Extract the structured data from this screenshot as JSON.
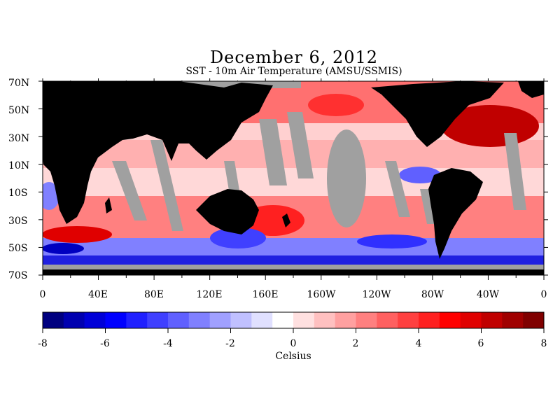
{
  "title": "December 6, 2012",
  "subtitle": "SST - 10m Air Temperature (AMSU/SSMIS)",
  "map": {
    "lat_labels": [
      "70N",
      "50N",
      "30N",
      "10N",
      "10S",
      "30S",
      "50S",
      "70S"
    ],
    "lon_labels": [
      "0",
      "40E",
      "80E",
      "120E",
      "160E",
      "160W",
      "120W",
      "80W",
      "40W",
      "0"
    ],
    "colors": {
      "land": "#000000",
      "no_data": "#a0a0a0"
    }
  },
  "colorbar": {
    "ticks": [
      "-8",
      "-6",
      "-4",
      "-2",
      "0",
      "2",
      "4",
      "6",
      "8"
    ],
    "unit": "Celsius",
    "range": [
      -8,
      8
    ],
    "colors": [
      "#000080",
      "#0000b0",
      "#0000d8",
      "#0000ff",
      "#2020ff",
      "#4040ff",
      "#6060ff",
      "#8080ff",
      "#a0a0ff",
      "#c0c0ff",
      "#e0e0ff",
      "#ffffff",
      "#ffe0e0",
      "#ffc0c0",
      "#ffa0a0",
      "#ff8080",
      "#ff6060",
      "#ff4040",
      "#ff2020",
      "#ff0000",
      "#e00000",
      "#c00000",
      "#a00000",
      "#800000"
    ]
  }
}
